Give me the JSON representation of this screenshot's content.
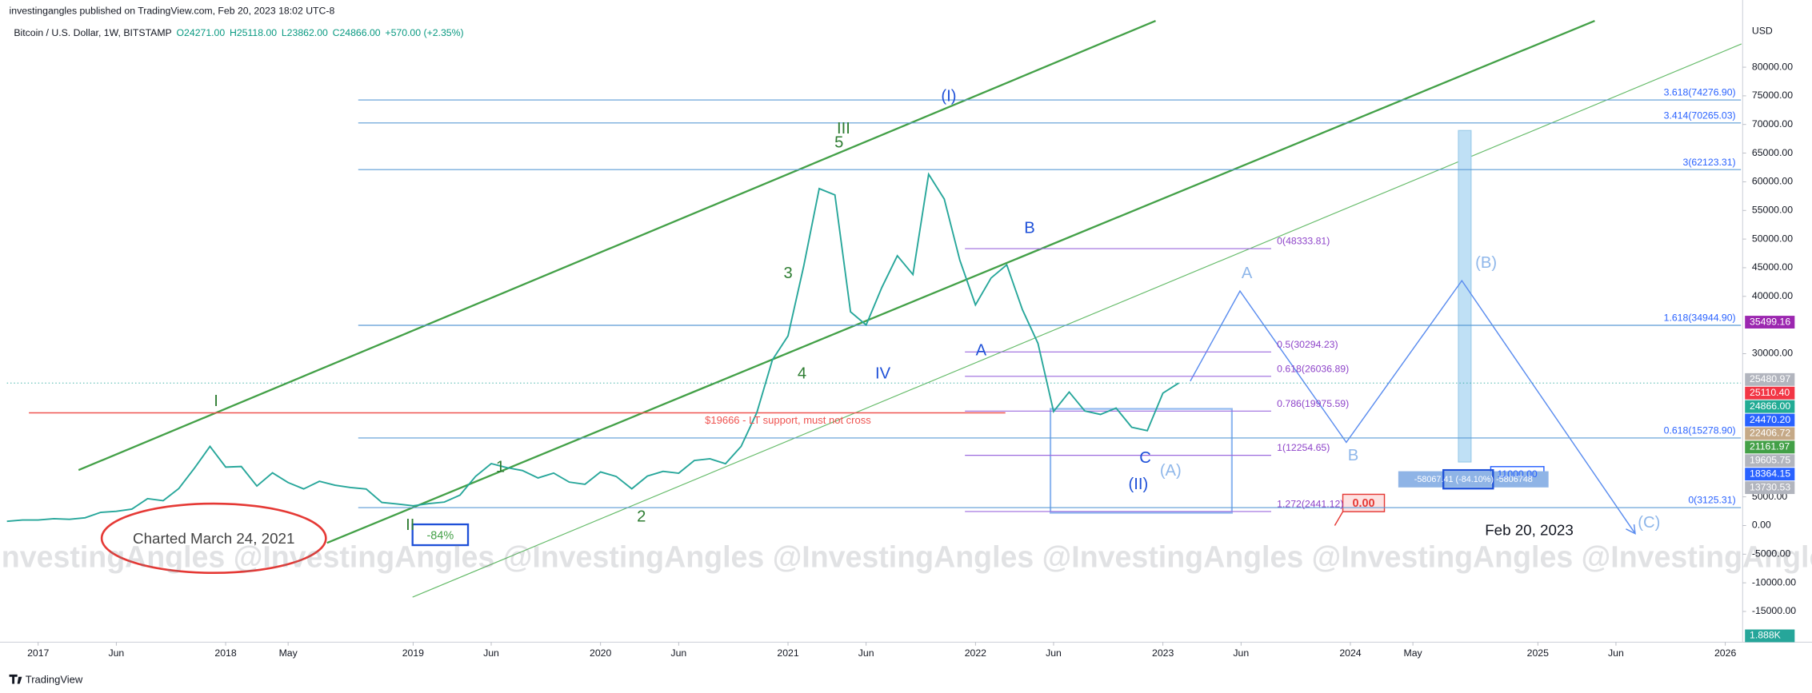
{
  "header": {
    "published": "investingangles published on TradingView.com, Feb 20, 2023 18:02 UTC-8",
    "symbol": "Bitcoin / U.S. Dollar, 1W, BITSTAMP",
    "ohlc": [
      "O24271.00",
      "H25118.00",
      "L23862.00",
      "C24866.00",
      "+570.00 (+2.35%)"
    ]
  },
  "chart_data": {
    "type": "line",
    "currency": "USD",
    "x": [
      "2016-11",
      "2016-12",
      "2017-01",
      "2017-02",
      "2017-03",
      "2017-04",
      "2017-05",
      "2017-06",
      "2017-07",
      "2017-08",
      "2017-09",
      "2017-10",
      "2017-11",
      "2017-12",
      "2018-01",
      "2018-02",
      "2018-03",
      "2018-04",
      "2018-05",
      "2018-06",
      "2018-07",
      "2018-08",
      "2018-09",
      "2018-10",
      "2018-11",
      "2018-12",
      "2019-01",
      "2019-02",
      "2019-03",
      "2019-04",
      "2019-05",
      "2019-06",
      "2019-07",
      "2019-08",
      "2019-09",
      "2019-10",
      "2019-11",
      "2019-12",
      "2020-01",
      "2020-02",
      "2020-03",
      "2020-04",
      "2020-05",
      "2020-06",
      "2020-07",
      "2020-08",
      "2020-09",
      "2020-10",
      "2020-11",
      "2020-12",
      "2021-01",
      "2021-02",
      "2021-03",
      "2021-04",
      "2021-05",
      "2021-06",
      "2021-07",
      "2021-08",
      "2021-09",
      "2021-10",
      "2021-11",
      "2021-12",
      "2022-01",
      "2022-02",
      "2022-03",
      "2022-04",
      "2022-05",
      "2022-06",
      "2022-07",
      "2022-08",
      "2022-09",
      "2022-10",
      "2022-11",
      "2022-12",
      "2023-01",
      "2023-02"
    ],
    "series": [
      {
        "name": "Bitcoin / U.S. Dollar",
        "color": "#26a69a",
        "values": [
          740,
          960,
          970,
          1190,
          1080,
          1350,
          2300,
          2480,
          2870,
          4700,
          4340,
          6450,
          10000,
          13800,
          10200,
          10300,
          6900,
          9200,
          7500,
          6400,
          7730,
          7030,
          6630,
          6370,
          4040,
          3740,
          3450,
          3820,
          4100,
          5300,
          8570,
          10800,
          10100,
          9600,
          8300,
          9150,
          7570,
          7200,
          9350,
          8560,
          6420,
          8620,
          9450,
          9140,
          11350,
          11650,
          10780,
          13800,
          19700,
          28900,
          33100,
          45200,
          58800,
          57700,
          37300,
          35000,
          41500,
          47100,
          43800,
          61300,
          57000,
          46300,
          38500,
          43200,
          45500,
          37700,
          31800,
          19900,
          23300,
          20000,
          19400,
          20500,
          17150,
          16550,
          23100,
          24866
        ]
      }
    ],
    "xlim": [
      "2016-11",
      "2026-02"
    ],
    "ylim": [
      -20000,
      88000
    ],
    "xticks": [
      {
        "value": "2017-01",
        "label": "2017"
      },
      {
        "value": "2017-06",
        "label": "Jun"
      },
      {
        "value": "2018-01",
        "label": "2018"
      },
      {
        "value": "2018-05",
        "label": "May"
      },
      {
        "value": "2019-01",
        "label": "2019"
      },
      {
        "value": "2019-06",
        "label": "Jun"
      },
      {
        "value": "2020-01",
        "label": "2020"
      },
      {
        "value": "2020-06",
        "label": "Jun"
      },
      {
        "value": "2021-01",
        "label": "2021"
      },
      {
        "value": "2021-06",
        "label": "Jun"
      },
      {
        "value": "2022-01",
        "label": "2022"
      },
      {
        "value": "2022-06",
        "label": "Jun"
      },
      {
        "value": "2023-01",
        "label": "2023"
      },
      {
        "value": "2023-06",
        "label": "Jun"
      },
      {
        "value": "2024-01",
        "label": "2024"
      },
      {
        "value": "2024-05",
        "label": "May"
      },
      {
        "value": "2025-01",
        "label": "2025"
      },
      {
        "value": "2025-06",
        "label": "Jun"
      },
      {
        "value": "2026-01",
        "label": "2026"
      }
    ],
    "yticks": [
      {
        "value": 80000,
        "label": "80000.00"
      },
      {
        "value": 75000,
        "label": "75000.00"
      },
      {
        "value": 70000,
        "label": "70000.00"
      },
      {
        "value": 65000,
        "label": "65000.00"
      },
      {
        "value": 60000,
        "label": "60000.00"
      },
      {
        "value": 55000,
        "label": "55000.00"
      },
      {
        "value": 50000,
        "label": "50000.00"
      },
      {
        "value": 45000,
        "label": "45000.00"
      },
      {
        "value": 40000,
        "label": "40000.00"
      },
      {
        "value": 30000,
        "label": "30000.00"
      },
      {
        "value": 5000,
        "label": "5000.00"
      },
      {
        "value": 0,
        "label": "0.00"
      },
      {
        "value": -5000,
        "label": "-5000.00"
      },
      {
        "value": -10000,
        "label": "-10000.00"
      },
      {
        "value": -15000,
        "label": "-15000.00"
      }
    ],
    "grid": false,
    "price_tags": [
      {
        "value": 35499.16,
        "label": "35499.16",
        "color": "#9c27b0"
      },
      {
        "value": 25480.97,
        "label": "25480.97",
        "color": "#b2b5be"
      },
      {
        "value": 25110.4,
        "label": "25110.40",
        "color": "#f23645"
      },
      {
        "value": 24866.0,
        "label": "24866.00",
        "color": "#22ab94"
      },
      {
        "value": 24470.2,
        "label": "24470.20",
        "color": "#2962ff"
      },
      {
        "value": 22406.72,
        "label": "22406.72",
        "color": "#c5a987"
      },
      {
        "value": 21161.97,
        "label": "21161.97",
        "color": "#43a047"
      },
      {
        "value": 19605.75,
        "label": "19605.75",
        "color": "#b2b5be"
      },
      {
        "value": 18364.15,
        "label": "18364.15",
        "color": "#2962ff"
      },
      {
        "value": 13730.53,
        "label": "13730.53",
        "color": "#b2b5be"
      }
    ],
    "volume_tag": {
      "value": 1888,
      "label": "1.888K",
      "color": "#26a69a"
    },
    "fib_right": [
      {
        "value": 74276.9,
        "label": "3.618(74276.90)"
      },
      {
        "value": 70265.03,
        "label": "3.414(70265.03)"
      },
      {
        "value": 62123.31,
        "label": "3(62123.31)"
      },
      {
        "value": 34944.9,
        "label": "1.618(34944.90)"
      },
      {
        "value": 15278.9,
        "label": "0.618(15278.90)"
      },
      {
        "value": 3125.31,
        "label": "0(3125.31)"
      }
    ],
    "fib_left": [
      {
        "value": 48333.81,
        "label": "0(48333.81)"
      },
      {
        "value": 30294.23,
        "label": "0.5(30294.23)"
      },
      {
        "value": 26036.89,
        "label": "0.618(26036.89)"
      },
      {
        "value": 19975.59,
        "label": "0.786(19975.59)"
      },
      {
        "value": 12254.65,
        "label": "1(12254.65)"
      },
      {
        "value": 2441.12,
        "label": "1.272(2441.12)"
      }
    ],
    "support": {
      "value": 19666,
      "label": "$19666 - LT support, must not cross"
    },
    "wave_labels": [
      "I",
      "II",
      "III",
      "5",
      "IV",
      "(I)",
      "1",
      "2",
      "3",
      "4",
      "A",
      "B",
      "C",
      "(II)",
      "(A)",
      "A",
      "B",
      "(B)",
      "(C)"
    ],
    "notes": {
      "charted": "Charted March 24, 2021",
      "drop": "-84%",
      "zero": "0.00",
      "target": "11000.00",
      "measure": "-58067.41 (-84.10%) -5806748",
      "date": "Feb 20, 2023"
    },
    "watermark": "InvestingAngles @InvestingAngles @InvestingAngles @InvestingAngles @InvestingAngles @InvestingAngles @InvestingAngles"
  },
  "footer": {
    "brand": "TradingView"
  }
}
